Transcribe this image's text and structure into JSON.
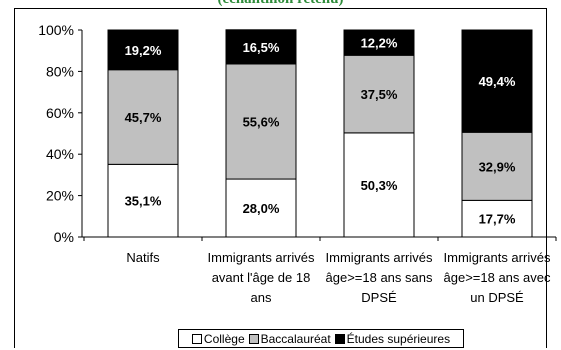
{
  "page_title": "(échantillon retenu)",
  "colors": {
    "college": "#ffffff",
    "baccalaureat": "#c0c0c0",
    "etudes_superieures": "#000000",
    "title": "#2e8b3a"
  },
  "chart_data": {
    "type": "bar",
    "stacked": true,
    "percent_stacked": true,
    "title": "(échantillon retenu)",
    "categories": [
      [
        "Natifs"
      ],
      [
        "Immigrants arrivés",
        "avant l'âge de 18",
        "ans"
      ],
      [
        "Immigrants arrivés",
        "âge>=18 ans sans",
        "DPSÉ"
      ],
      [
        "Immigrants arrivés",
        "âge>=18 ans avec",
        "un DPSÉ"
      ]
    ],
    "series": [
      {
        "name": "Collège",
        "values": [
          35.1,
          28.0,
          50.3,
          17.7
        ],
        "labels": [
          "35,1%",
          "28,0%",
          "50,3%",
          "17,7%"
        ]
      },
      {
        "name": "Baccalauréat",
        "values": [
          45.7,
          55.6,
          37.5,
          32.9
        ],
        "labels": [
          "45,7%",
          "55,6%",
          "37,5%",
          "32,9%"
        ]
      },
      {
        "name": "Études supérieures",
        "values": [
          19.2,
          16.5,
          12.2,
          49.4
        ],
        "labels": [
          "19,2%",
          "16,5%",
          "12,2%",
          "49,4%"
        ]
      }
    ],
    "yticks": [
      "0%",
      "20%",
      "40%",
      "60%",
      "80%",
      "100%"
    ],
    "ylim": [
      0,
      100
    ],
    "grid": false,
    "legend_position": "bottom"
  }
}
